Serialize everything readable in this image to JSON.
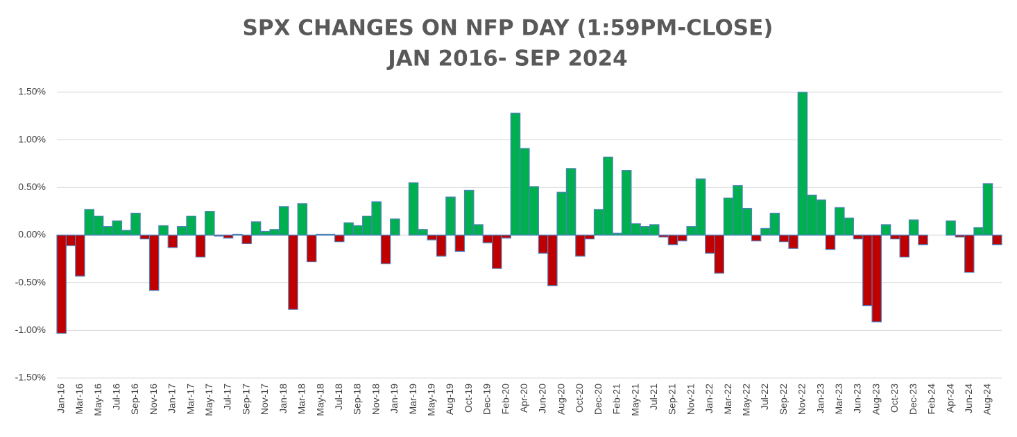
{
  "chart_data": {
    "type": "bar",
    "title": "SPX CHANGES ON NFP DAY (1:59PM-CLOSE)",
    "subtitle": "JAN 2016- SEP 2024",
    "categories": [
      "Jan-16",
      null,
      "Mar-16",
      null,
      "May-16",
      null,
      "Jul-16",
      null,
      "Sep-16",
      null,
      "Nov-16",
      null,
      "Jan-17",
      null,
      "Mar-17",
      null,
      "May-17",
      null,
      "Jul-17",
      null,
      "Sep-17",
      null,
      "Nov-17",
      null,
      "Jan-18",
      null,
      "Mar-18",
      null,
      "May-18",
      null,
      "Jul-18",
      null,
      "Sep-18",
      null,
      "Nov-18",
      null,
      "Jan-19",
      null,
      "Mar-19",
      null,
      "May-19",
      null,
      "Aug-19",
      null,
      "Oct-19",
      null,
      "Dec-19",
      null,
      "Feb-20",
      null,
      "Apr-20",
      null,
      "Jun-20",
      null,
      "Aug-20",
      null,
      "Oct-20",
      null,
      "Dec-20",
      null,
      "Feb-21",
      null,
      "May-21",
      null,
      "Jul-21",
      null,
      "Sep-21",
      null,
      "Nov-21",
      null,
      "Jan-22",
      null,
      "Mar-22",
      null,
      "May-22",
      null,
      "Jul-22",
      null,
      "Sep-22",
      null,
      "Nov-22",
      null,
      "Jan-23",
      null,
      "Mar-23",
      null,
      "Jun-23",
      null,
      "Aug-23",
      null,
      "Oct-23",
      null,
      "Dec-23",
      null,
      "Feb-24",
      null,
      "Apr-24",
      null,
      "Jun-24",
      null,
      "Aug-24",
      null
    ],
    "values": [
      -1.03,
      -0.11,
      -0.43,
      0.27,
      0.2,
      0.09,
      0.15,
      0.05,
      0.23,
      -0.04,
      -0.58,
      0.1,
      -0.13,
      0.09,
      0.2,
      -0.23,
      0.25,
      -0.01,
      -0.03,
      0.01,
      -0.09,
      0.14,
      0.04,
      0.06,
      0.3,
      -0.78,
      0.33,
      -0.28,
      0.01,
      0.01,
      -0.07,
      0.13,
      0.1,
      0.2,
      0.35,
      -0.3,
      0.17,
      0.0,
      0.55,
      0.06,
      -0.05,
      -0.22,
      0.4,
      -0.17,
      0.47,
      0.11,
      -0.08,
      -0.35,
      -0.03,
      1.28,
      0.91,
      0.51,
      -0.19,
      -0.53,
      0.45,
      0.7,
      -0.22,
      -0.04,
      0.27,
      0.82,
      0.02,
      0.68,
      0.12,
      0.09,
      0.11,
      -0.02,
      -0.1,
      -0.06,
      0.09,
      0.59,
      -0.19,
      -0.4,
      0.39,
      0.52,
      0.28,
      -0.06,
      0.07,
      0.23,
      -0.07,
      -0.14,
      1.5,
      0.42,
      0.37,
      -0.15,
      0.29,
      0.18,
      -0.04,
      -0.74,
      -0.91,
      0.11,
      -0.04,
      -0.23,
      0.16,
      -0.1,
      0.0,
      0.0,
      0.15,
      -0.02,
      -0.39,
      0.08,
      0.54,
      -0.1
    ],
    "positive_color": "#00b050",
    "negative_color": "#c00000",
    "edge_color": "#4f81bd",
    "ylim": [
      -1.5,
      1.5
    ],
    "yticks": [
      {
        "value": -1.5,
        "label": "-1.50%"
      },
      {
        "value": -1.0,
        "label": "-1.00%"
      },
      {
        "value": -0.5,
        "label": "-0.50%"
      },
      {
        "value": 0,
        "label": "0.00%"
      },
      {
        "value": 0.5,
        "label": "0.50%"
      },
      {
        "value": 1.0,
        "label": "1.00%"
      },
      {
        "value": 1.5,
        "label": "1.50%"
      }
    ],
    "grid": true
  }
}
